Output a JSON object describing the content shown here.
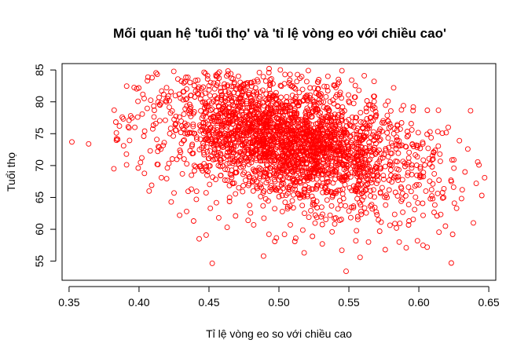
{
  "chart_data": {
    "type": "scatter",
    "title": "Mối quan hệ 'tuổi thọ' và 'tỉ lệ vòng eo với chiều cao'",
    "xlabel": "Tỉ lệ vòng eo so với chiều cao",
    "ylabel": "Tuổi thọ",
    "xlim": [
      0.345,
      0.655
    ],
    "ylim": [
      52,
      86
    ],
    "xticks": [
      0.35,
      0.4,
      0.45,
      0.5,
      0.55,
      0.6,
      0.65
    ],
    "xtick_labels": [
      "0.35",
      "0.40",
      "0.45",
      "0.50",
      "0.55",
      "0.60",
      "0.65"
    ],
    "yticks": [
      55,
      60,
      65,
      70,
      75,
      80,
      85
    ],
    "ytick_labels": [
      "55",
      "60",
      "65",
      "70",
      "75",
      "80",
      "85"
    ],
    "point_color": "#ff0000",
    "marker": "open-circle",
    "grid": false,
    "legend": "none",
    "points": [
      [
        0.352,
        73.7
      ],
      [
        0.364,
        73.4
      ],
      [
        0.382,
        69.5
      ],
      [
        0.384,
        74.2
      ],
      [
        0.386,
        76.2
      ],
      [
        0.388,
        77.6
      ],
      [
        0.389,
        73.1
      ],
      [
        0.391,
        71.8
      ],
      [
        0.394,
        77.8
      ],
      [
        0.397,
        76.0
      ],
      [
        0.399,
        77.6
      ],
      [
        0.402,
        71.2
      ],
      [
        0.404,
        75.4
      ],
      [
        0.406,
        83.3
      ],
      [
        0.408,
        72.3
      ],
      [
        0.409,
        66.9
      ],
      [
        0.412,
        76.6
      ],
      [
        0.413,
        70.2
      ],
      [
        0.415,
        79.5
      ],
      [
        0.416,
        68.1
      ],
      [
        0.418,
        73.6
      ],
      [
        0.421,
        80.9
      ],
      [
        0.423,
        64.3
      ],
      [
        0.425,
        65.7
      ],
      [
        0.426,
        76.5
      ],
      [
        0.429,
        62.2
      ],
      [
        0.431,
        68.7
      ],
      [
        0.432,
        81.6
      ],
      [
        0.434,
        62.8
      ],
      [
        0.436,
        75.1
      ],
      [
        0.437,
        79.2
      ],
      [
        0.439,
        61.3
      ],
      [
        0.441,
        64.7
      ],
      [
        0.442,
        83.4
      ],
      [
        0.443,
        58.5
      ],
      [
        0.445,
        81.1
      ],
      [
        0.447,
        78.2
      ],
      [
        0.448,
        59.1
      ],
      [
        0.449,
        84.1
      ],
      [
        0.451,
        63.3
      ],
      [
        0.455,
        84.2
      ],
      [
        0.457,
        61.8
      ],
      [
        0.461,
        82.8
      ],
      [
        0.463,
        60.3
      ],
      [
        0.466,
        83.7
      ],
      [
        0.469,
        62.1
      ],
      [
        0.471,
        84.0
      ],
      [
        0.478,
        61.4
      ],
      [
        0.482,
        60.7
      ],
      [
        0.486,
        84.6
      ],
      [
        0.489,
        55.8
      ],
      [
        0.493,
        85.2
      ],
      [
        0.497,
        58.1
      ],
      [
        0.501,
        85.0
      ],
      [
        0.504,
        59.2
      ],
      [
        0.508,
        84.3
      ],
      [
        0.512,
        58.6
      ],
      [
        0.515,
        83.7
      ],
      [
        0.518,
        56.3
      ],
      [
        0.521,
        84.9
      ],
      [
        0.524,
        58.9
      ],
      [
        0.528,
        83.1
      ],
      [
        0.531,
        57.7
      ],
      [
        0.535,
        84.0
      ],
      [
        0.538,
        59.6
      ],
      [
        0.542,
        82.8
      ],
      [
        0.545,
        56.7
      ],
      [
        0.548,
        53.4
      ],
      [
        0.552,
        83.4
      ],
      [
        0.555,
        58.2
      ],
      [
        0.558,
        55.6
      ],
      [
        0.561,
        84.1
      ],
      [
        0.564,
        58.0
      ],
      [
        0.568,
        83.2
      ],
      [
        0.572,
        59.7
      ],
      [
        0.576,
        56.8
      ],
      [
        0.578,
        80.1
      ],
      [
        0.582,
        82.2
      ],
      [
        0.584,
        60.2
      ],
      [
        0.586,
        58.0
      ],
      [
        0.589,
        79.4
      ],
      [
        0.591,
        57.1
      ],
      [
        0.593,
        61.3
      ],
      [
        0.595,
        75.6
      ],
      [
        0.597,
        63.1
      ],
      [
        0.599,
        58.2
      ],
      [
        0.601,
        72.7
      ],
      [
        0.603,
        57.5
      ],
      [
        0.605,
        66.0
      ],
      [
        0.606,
        57.2
      ],
      [
        0.608,
        75.3
      ],
      [
        0.611,
        68.7
      ],
      [
        0.613,
        62.1
      ],
      [
        0.615,
        71.8
      ],
      [
        0.617,
        64.9
      ],
      [
        0.619,
        60.5
      ],
      [
        0.621,
        76.0
      ],
      [
        0.623,
        67.7
      ],
      [
        0.625,
        70.9
      ],
      [
        0.627,
        63.3
      ],
      [
        0.629,
        73.9
      ],
      [
        0.631,
        66.2
      ],
      [
        0.633,
        69.0
      ],
      [
        0.635,
        72.6
      ],
      [
        0.637,
        78.6
      ],
      [
        0.639,
        61.0
      ],
      [
        0.641,
        67.2
      ],
      [
        0.643,
        70.1
      ],
      [
        0.645,
        65.3
      ],
      [
        0.647,
        68.1
      ]
    ]
  }
}
